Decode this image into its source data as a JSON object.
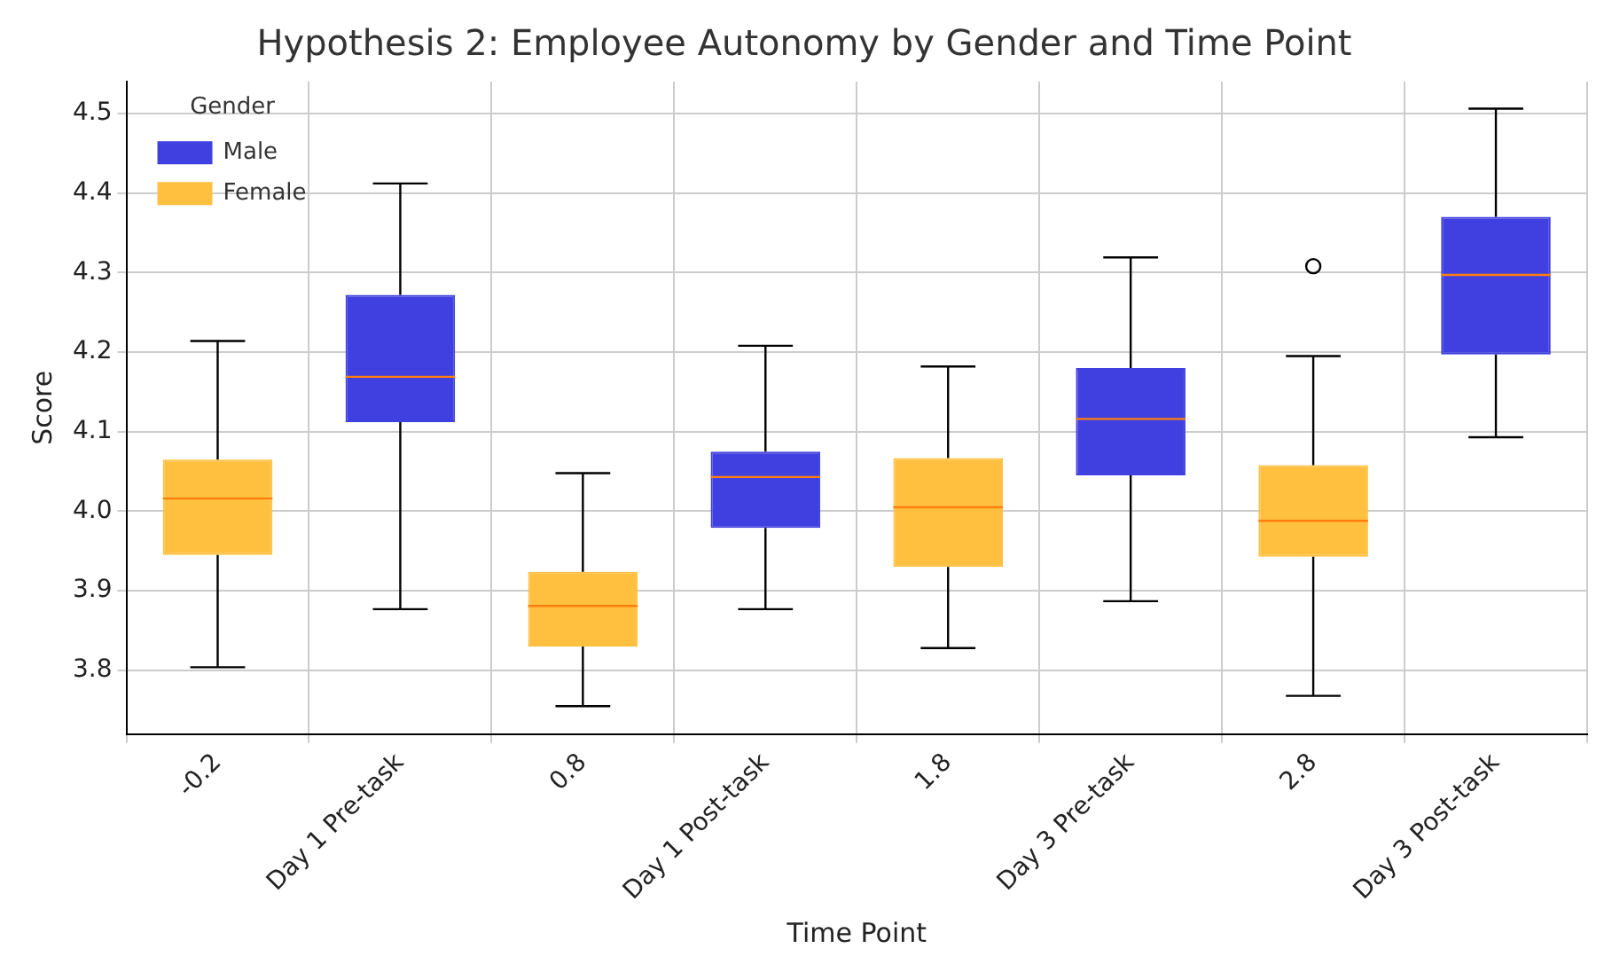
{
  "chart_data": {
    "type": "box",
    "title": "Hypothesis 2: Employee Autonomy by Gender and Time Point",
    "xlabel": "Time Point",
    "ylabel": "Score",
    "legend_title": "Gender",
    "legend": "top left",
    "grid": true,
    "categories": [
      "-0.2",
      "Day 1 Pre-task",
      "0.8",
      "Day 1 Post-task",
      "1.8",
      "Day 3 Pre-task",
      "2.8",
      "Day 3 Post-task"
    ],
    "ylim": [
      3.72,
      4.54
    ],
    "yticks": [
      3.8,
      3.9,
      {
        "value": 4,
        "label": "4.0"
      },
      4.1,
      4.2,
      4.3,
      4.4,
      4.5
    ],
    "series": [
      {
        "name": "Male",
        "color": "#4040e0",
        "boxes": [
          null,
          {
            "low": 3.877,
            "q1": 4.112,
            "median": 4.169,
            "q3": 4.272,
            "high": 4.412
          },
          null,
          {
            "low": 3.877,
            "q1": 3.979,
            "median": 4.043,
            "q3": 4.075,
            "high": 4.208
          },
          null,
          {
            "low": 3.887,
            "q1": 4.045,
            "median": 4.116,
            "q3": 4.18,
            "high": 4.319
          },
          null,
          {
            "low": 4.093,
            "q1": 4.197,
            "median": 4.297,
            "q3": 4.37,
            "high": 4.506
          }
        ]
      },
      {
        "name": "Female",
        "color": "#ffc040",
        "boxes": [
          {
            "low": 3.804,
            "q1": 3.945,
            "median": 4.016,
            "q3": 4.065,
            "high": 4.214
          },
          null,
          {
            "low": 3.755,
            "q1": 3.83,
            "median": 3.881,
            "q3": 3.924,
            "high": 4.048
          },
          null,
          {
            "low": 3.828,
            "q1": 3.93,
            "median": 4.005,
            "q3": 4.067,
            "high": 4.182
          },
          null,
          {
            "low": 3.768,
            "q1": 3.943,
            "median": 3.988,
            "q3": 4.058,
            "high": 4.195,
            "outliers": [
              4.308
            ]
          },
          null
        ]
      }
    ]
  }
}
